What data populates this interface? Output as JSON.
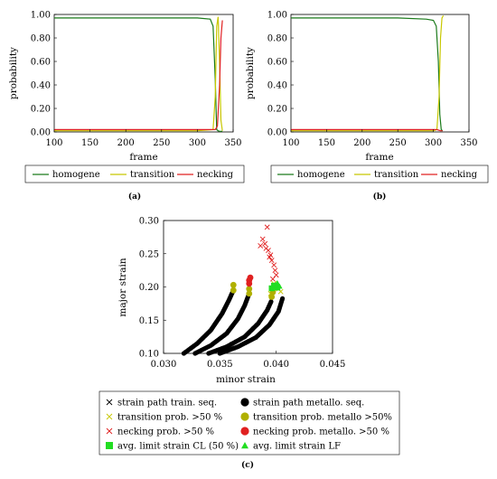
{
  "chart_data": [
    {
      "type": "line",
      "caption": "(a)",
      "xlabel": "frame",
      "ylabel": "probability",
      "xlim": [
        100,
        350
      ],
      "ylim": [
        0,
        1
      ],
      "xticks": [
        "100",
        "150",
        "200",
        "250",
        "300",
        "350"
      ],
      "yticks": [
        "0.00",
        "0.20",
        "0.40",
        "0.60",
        "0.80",
        "1.00"
      ],
      "legend_position": "bottom",
      "series": [
        {
          "name": "homogene",
          "color": "#1a7a1a",
          "x": [
            100,
            150,
            200,
            250,
            300,
            318,
            322,
            325,
            327,
            329,
            331,
            335
          ],
          "y": [
            0.97,
            0.97,
            0.97,
            0.97,
            0.97,
            0.96,
            0.9,
            0.45,
            0.02,
            0.01,
            0.005,
            0.005
          ]
        },
        {
          "name": "transition",
          "color": "#c8c800",
          "x": [
            100,
            150,
            200,
            250,
            300,
            322,
            325,
            327,
            329,
            331,
            333,
            335
          ],
          "y": [
            0.01,
            0.01,
            0.01,
            0.01,
            0.01,
            0.02,
            0.3,
            0.9,
            0.98,
            0.6,
            0.1,
            0.01
          ]
        },
        {
          "name": "necking",
          "color": "#e02020",
          "x": [
            100,
            150,
            200,
            250,
            300,
            325,
            328,
            331,
            333,
            335
          ],
          "y": [
            0.02,
            0.02,
            0.02,
            0.02,
            0.02,
            0.02,
            0.05,
            0.4,
            0.8,
            0.95
          ]
        }
      ]
    },
    {
      "type": "line",
      "caption": "(b)",
      "xlabel": "frame",
      "ylabel": "probability",
      "xlim": [
        100,
        350
      ],
      "ylim": [
        0,
        1
      ],
      "xticks": [
        "100",
        "150",
        "200",
        "250",
        "300",
        "350"
      ],
      "yticks": [
        "0.00",
        "0.20",
        "0.40",
        "0.60",
        "0.80",
        "1.00"
      ],
      "legend_position": "bottom",
      "series": [
        {
          "name": "homogene",
          "color": "#1a7a1a",
          "x": [
            100,
            150,
            200,
            250,
            290,
            300,
            304,
            307,
            309,
            311,
            313
          ],
          "y": [
            0.97,
            0.97,
            0.97,
            0.97,
            0.96,
            0.95,
            0.9,
            0.6,
            0.15,
            0.02,
            0.01
          ]
        },
        {
          "name": "transition",
          "color": "#c8c800",
          "x": [
            100,
            150,
            200,
            250,
            300,
            305,
            308,
            310,
            312,
            314
          ],
          "y": [
            0.01,
            0.01,
            0.01,
            0.01,
            0.01,
            0.02,
            0.3,
            0.8,
            0.97,
            0.99
          ]
        },
        {
          "name": "necking",
          "color": "#e02020",
          "x": [
            100,
            150,
            200,
            250,
            300,
            305,
            310,
            313
          ],
          "y": [
            0.02,
            0.02,
            0.02,
            0.02,
            0.02,
            0.02,
            0.01,
            0.01
          ]
        }
      ]
    },
    {
      "type": "scatter",
      "caption": "(c)",
      "xlabel": "minor strain",
      "ylabel": "major strain",
      "xlim": [
        0.03,
        0.045
      ],
      "ylim": [
        0.1,
        0.3
      ],
      "xticks": [
        "0.030",
        "0.035",
        "0.040",
        "0.045"
      ],
      "yticks": [
        "0.10",
        "0.15",
        "0.20",
        "0.25",
        "0.30"
      ],
      "legend_position": "bottom",
      "series": [
        {
          "name": "strain path train. seq.",
          "color": "#000000",
          "marker": "x"
        },
        {
          "name": "strain path metallo. seq.",
          "color": "#000000",
          "marker": "circle",
          "paths": [
            {
              "x": [
                0.0318,
                0.033,
                0.0342,
                0.0352,
                0.0358,
                0.0362
              ],
              "y": [
                0.1,
                0.115,
                0.135,
                0.16,
                0.18,
                0.195
              ]
            },
            {
              "x": [
                0.0328,
                0.0342,
                0.0356,
                0.0366,
                0.0372,
                0.0376
              ],
              "y": [
                0.1,
                0.112,
                0.13,
                0.152,
                0.172,
                0.19
              ]
            },
            {
              "x": [
                0.034,
                0.0356,
                0.0372,
                0.0384,
                0.0392,
                0.0396
              ],
              "y": [
                0.1,
                0.11,
                0.125,
                0.145,
                0.165,
                0.18
              ]
            },
            {
              "x": [
                0.035,
                0.0366,
                0.0382,
                0.0394,
                0.0402,
                0.0406
              ],
              "y": [
                0.1,
                0.11,
                0.124,
                0.143,
                0.163,
                0.185
              ]
            }
          ]
        },
        {
          "name": "transition prob. >50 %",
          "color": "#c8c800",
          "marker": "x",
          "x": [
            0.0395,
            0.0397,
            0.04,
            0.0402,
            0.0404,
            0.0398
          ],
          "y": [
            0.19,
            0.195,
            0.2,
            0.197,
            0.193,
            0.205
          ]
        },
        {
          "name": "transition prob. metallo >50%",
          "color": "#b0b000",
          "marker": "circle",
          "x": [
            0.0362,
            0.0362,
            0.0376,
            0.0376,
            0.0396,
            0.0397
          ],
          "y": [
            0.195,
            0.203,
            0.19,
            0.197,
            0.185,
            0.192
          ]
        },
        {
          "name": "necking prob. >50 %",
          "color": "#e02020",
          "marker": "x",
          "x": [
            0.0392,
            0.0388,
            0.0386,
            0.039,
            0.0393,
            0.0395,
            0.0396,
            0.0398,
            0.0399,
            0.04,
            0.0397,
            0.0394,
            0.0391
          ],
          "y": [
            0.29,
            0.272,
            0.262,
            0.265,
            0.255,
            0.248,
            0.24,
            0.233,
            0.225,
            0.218,
            0.212,
            0.245,
            0.258
          ]
        },
        {
          "name": "necking prob. metallo. >50 %",
          "color": "#e02020",
          "marker": "circle",
          "x": [
            0.0376,
            0.0376,
            0.0377
          ],
          "y": [
            0.205,
            0.21,
            0.214
          ]
        },
        {
          "name": "avg. limit strain CL (50 %)",
          "color": "#22dd22",
          "marker": "square",
          "x": [
            0.0396,
            0.0398,
            0.0401
          ],
          "y": [
            0.198,
            0.202,
            0.199
          ]
        },
        {
          "name": "avg. limit strain LF",
          "color": "#22dd22",
          "marker": "triangle",
          "x": [
            0.0399,
            0.0401,
            0.0403
          ],
          "y": [
            0.203,
            0.206,
            0.201
          ]
        }
      ]
    }
  ]
}
